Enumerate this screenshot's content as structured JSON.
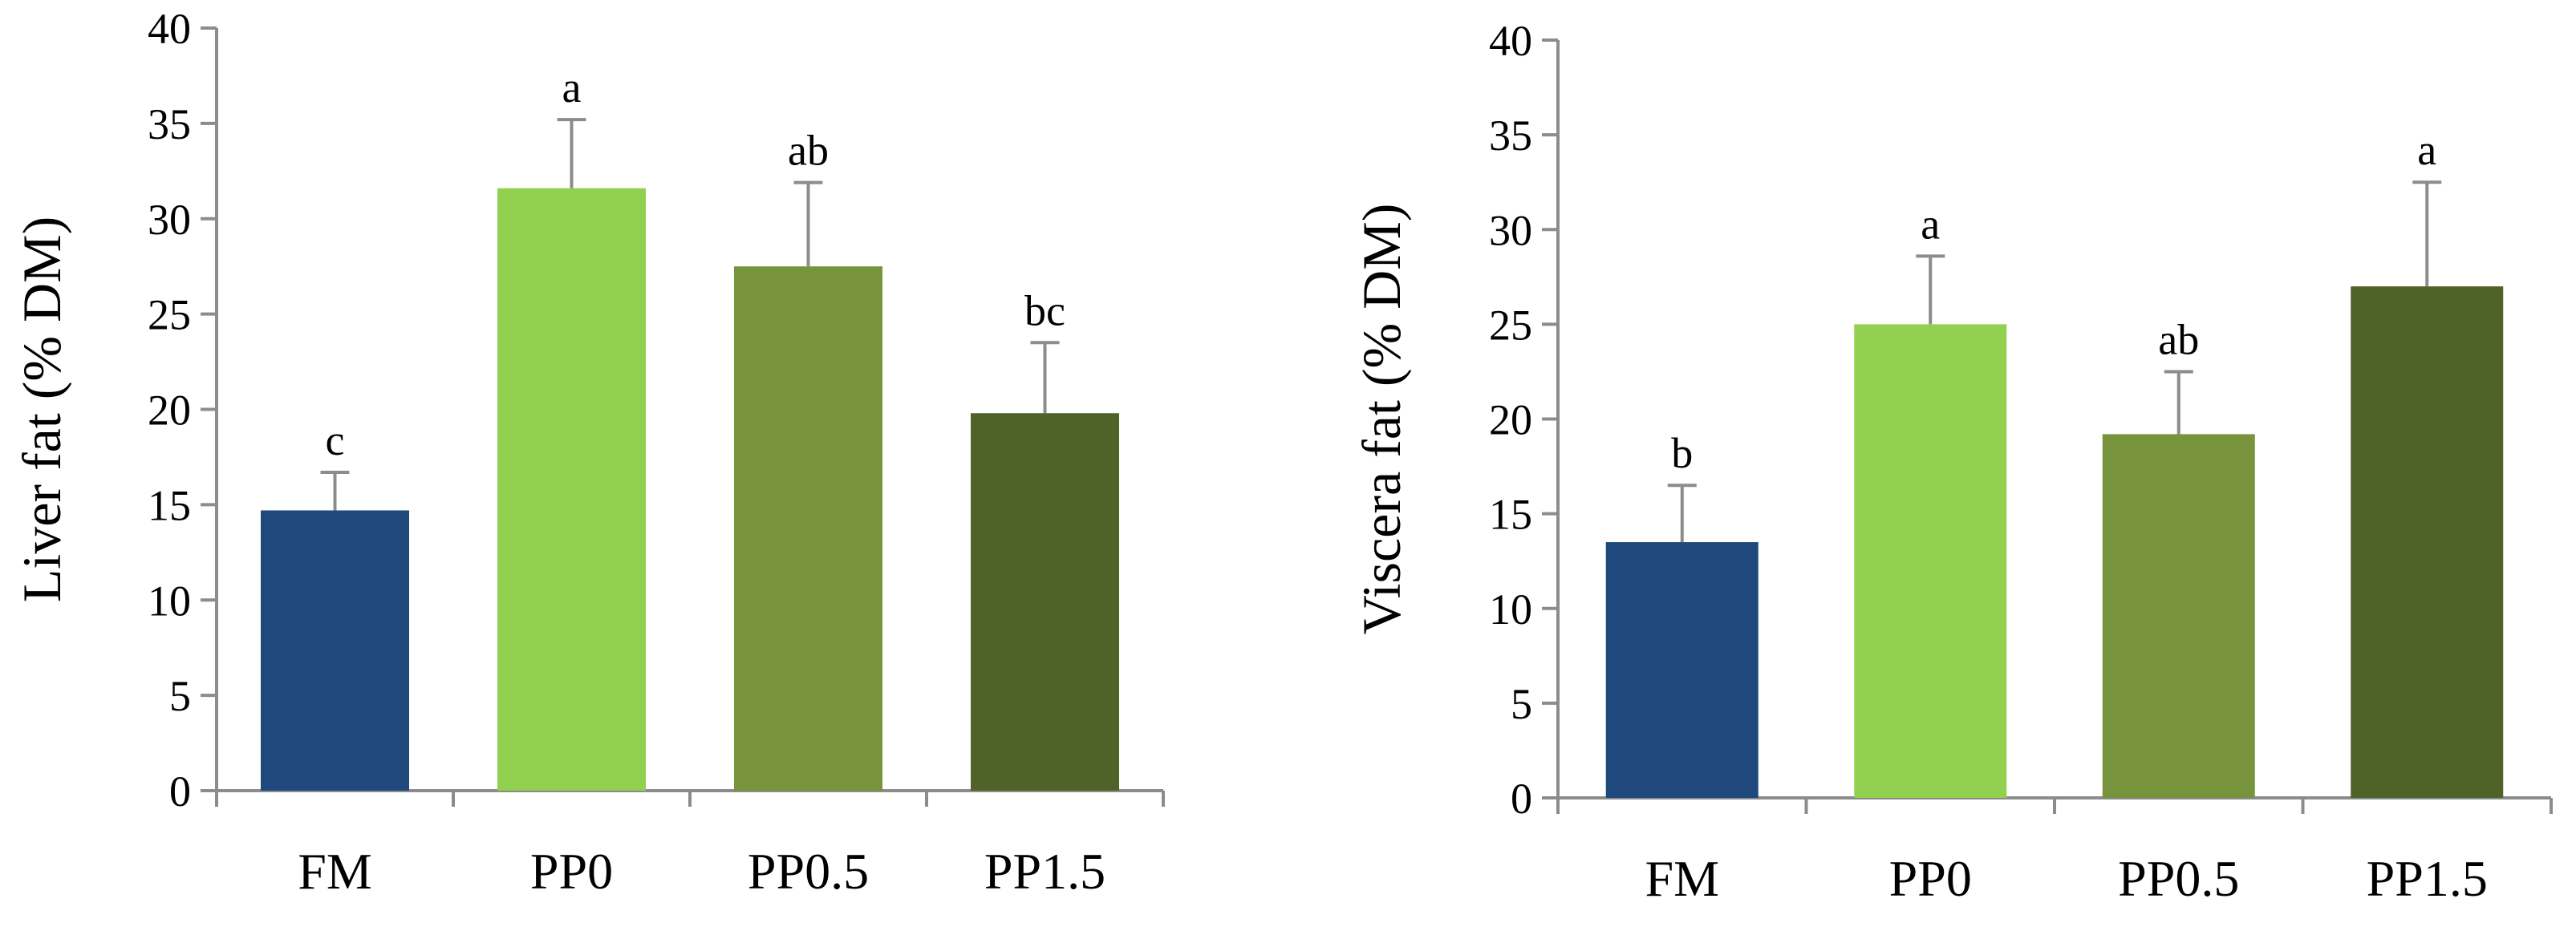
{
  "chart_data": [
    {
      "type": "bar",
      "title": "",
      "xlabel": "",
      "ylabel": "Liver fat (% DM)",
      "ylim": [
        0,
        40
      ],
      "yticks": [
        0,
        5,
        10,
        15,
        20,
        25,
        30,
        35,
        40
      ],
      "categories": [
        "FM",
        "PP0",
        "PP0.5",
        "PP1.5"
      ],
      "values": [
        14.7,
        31.6,
        27.5,
        19.8
      ],
      "errors": [
        2.0,
        3.6,
        4.4,
        3.7
      ],
      "significance": [
        "c",
        "a",
        "ab",
        "bc"
      ],
      "colors": [
        "#1f497d",
        "#92d050",
        "#77933c",
        "#4f6228"
      ]
    },
    {
      "type": "bar",
      "title": "",
      "xlabel": "",
      "ylabel": "Viscera fat (% DM)",
      "ylim": [
        0,
        40
      ],
      "yticks": [
        0,
        5,
        10,
        15,
        20,
        25,
        30,
        35,
        40
      ],
      "categories": [
        "FM",
        "PP0",
        "PP0.5",
        "PP1.5"
      ],
      "values": [
        13.5,
        25.0,
        19.2,
        27.0
      ],
      "errors": [
        3.0,
        3.6,
        3.3,
        5.5
      ],
      "significance": [
        "b",
        "a",
        "ab",
        "a"
      ],
      "colors": [
        "#1f497d",
        "#92d050",
        "#77933c",
        "#4f6228"
      ]
    }
  ]
}
